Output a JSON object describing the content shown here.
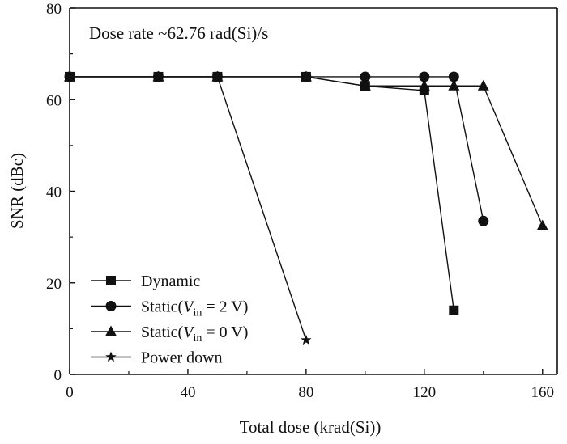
{
  "chart_data": {
    "type": "line",
    "annotation": "Dose rate ~62.76 rad(Si)/s",
    "xlabel": "Total dose (krad(Si))",
    "ylabel": "SNR (dBc)",
    "xlim": [
      0,
      165
    ],
    "ylim": [
      0,
      80
    ],
    "xticks": [
      0,
      40,
      80,
      120,
      160
    ],
    "yticks": [
      0,
      20,
      40,
      60,
      80
    ],
    "grid": false,
    "legend_position": "bottom-left",
    "series": [
      {
        "name": "Dynamic",
        "marker": "square",
        "x": [
          0,
          30,
          50,
          80,
          100,
          120,
          130
        ],
        "y": [
          65,
          65,
          65,
          65,
          63,
          62,
          14
        ]
      },
      {
        "name": "Static(Vin = 2 V)",
        "legend_prefix": "Static(",
        "legend_var": "V",
        "legend_sub": "in",
        "legend_suffix": " = 2 V)",
        "marker": "circle",
        "x": [
          0,
          30,
          50,
          80,
          100,
          120,
          130,
          140
        ],
        "y": [
          65,
          65,
          65,
          65,
          65,
          65,
          65,
          33.5
        ]
      },
      {
        "name": "Static(Vin = 0 V)",
        "legend_prefix": "Static(",
        "legend_var": "V",
        "legend_sub": "in",
        "legend_suffix": " = 0 V)",
        "marker": "triangle",
        "x": [
          0,
          30,
          50,
          80,
          100,
          120,
          130,
          140,
          160
        ],
        "y": [
          65,
          65,
          65,
          65,
          63,
          63,
          63,
          63,
          32.5
        ]
      },
      {
        "name": "Power down",
        "marker": "star",
        "x": [
          0,
          30,
          50,
          80
        ],
        "y": [
          65,
          65,
          65,
          7.5
        ]
      }
    ],
    "colors": {
      "line": "#111111",
      "marker": "#111111",
      "axis": "#111111"
    }
  }
}
